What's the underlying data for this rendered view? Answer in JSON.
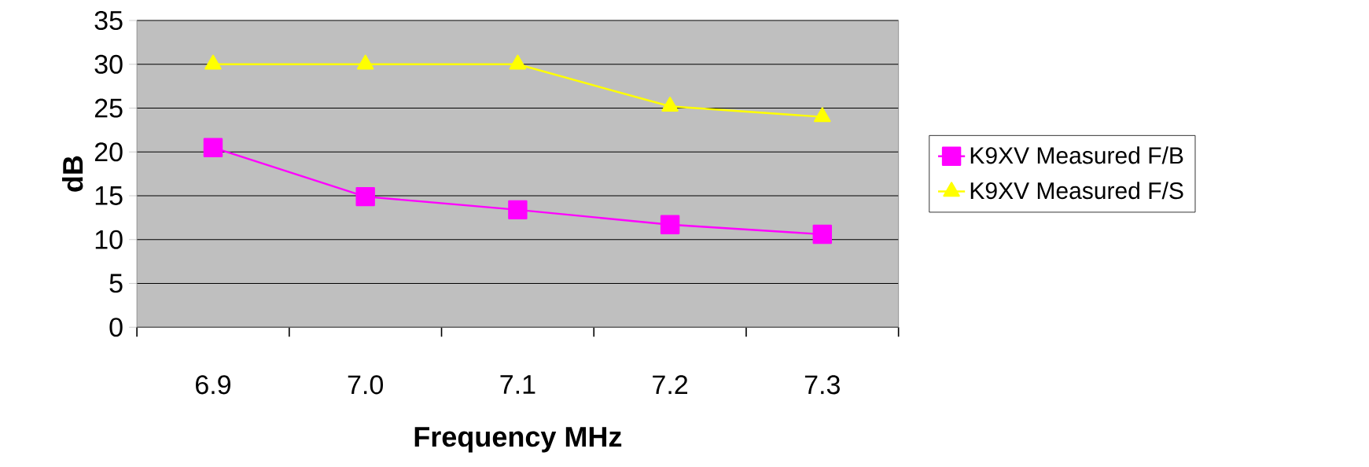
{
  "chart_data": {
    "type": "line",
    "xlabel": "Frequency MHz",
    "ylabel": "dB",
    "categories": [
      "6.9",
      "7.0",
      "7.1",
      "7.2",
      "7.3"
    ],
    "series": [
      {
        "name": "K9XV Measured F/B",
        "color": "#ff00ff",
        "marker": "square",
        "values": [
          20.5,
          14.9,
          13.4,
          11.7,
          10.6
        ]
      },
      {
        "name": "K9XV Measured F/S",
        "color": "#ffff00",
        "marker": "triangle",
        "values": [
          30,
          30,
          30,
          25.2,
          24
        ]
      }
    ],
    "ylim": [
      0,
      35
    ],
    "yticks": [
      0,
      5,
      10,
      15,
      20,
      25,
      30,
      35
    ],
    "grid": "y",
    "legend": "right"
  }
}
